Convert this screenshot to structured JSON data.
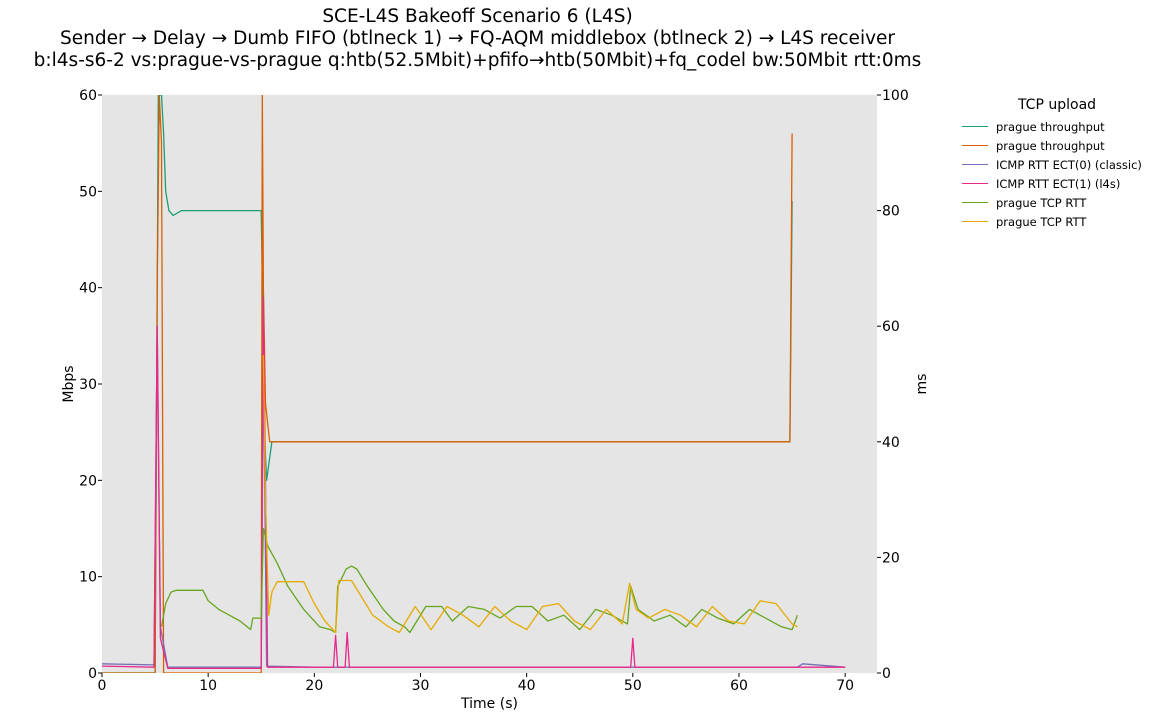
{
  "title": {
    "line1": "SCE-L4S Bakeoff Scenario 6 (L4S)",
    "line2": "Sender → Delay → Dumb FIFO (btlneck 1) → FQ-AQM middlebox (btlneck 2) → L4S receiver",
    "line3": "b:l4s-s6-2 vs:prague-vs-prague q:htb(52.5Mbit)+pfifo→htb(50Mbit)+fq_codel bw:50Mbit rtt:0ms"
  },
  "chart_data": {
    "type": "line",
    "background": "#e5e5e5",
    "grid": false,
    "legend_placement": "outside-right",
    "xlabel": "Time (s)",
    "ylabel_left": "Mbps",
    "ylabel_right": "ms",
    "xlim": [
      0,
      73
    ],
    "ylim_left": [
      0,
      60
    ],
    "ylim_right": [
      0,
      100
    ],
    "xticks": [
      0,
      10,
      20,
      30,
      40,
      50,
      60,
      70
    ],
    "yticks_left": [
      0,
      10,
      20,
      30,
      40,
      50,
      60
    ],
    "yticks_right": [
      0,
      20,
      40,
      60,
      80,
      100
    ],
    "legend_title": "TCP upload",
    "series": [
      {
        "name": "prague throughput",
        "axis": "left",
        "color": "#1b9e77",
        "x": [
          0,
          5,
          5.3,
          5.6,
          5.8,
          6.0,
          6.3,
          6.7,
          7.5,
          10,
          12.5,
          14.8,
          15.0,
          15.15,
          15.3,
          15.5,
          16,
          17,
          20,
          30,
          40,
          50,
          60,
          64.8,
          65.0
        ],
        "y": [
          0,
          0,
          60,
          60,
          56,
          50,
          48,
          47.5,
          48,
          48,
          48,
          48,
          48,
          38,
          25,
          20,
          24,
          24,
          24,
          24,
          24,
          24,
          24,
          24,
          49
        ]
      },
      {
        "name": "prague throughput",
        "axis": "left",
        "color": "#d95f02",
        "x": [
          0,
          5,
          5.2,
          5.4,
          5.6,
          5.8,
          15.0,
          15.1,
          15.2,
          15.4,
          15.8,
          16.5,
          20,
          30,
          40,
          50,
          60,
          64.8,
          65.0
        ],
        "y": [
          0,
          0,
          40,
          60,
          55,
          0,
          0,
          60,
          40,
          28,
          24,
          24,
          24,
          24,
          24,
          24,
          24,
          24,
          56
        ]
      },
      {
        "name": "ICMP RTT ECT(0) (classic)",
        "axis": "right",
        "color": "#7570b3",
        "x": [
          0,
          4.9,
          5.2,
          5.5,
          6.2,
          15.0,
          15.2,
          15.5,
          20,
          30,
          40,
          50,
          60,
          65.5,
          66,
          70
        ],
        "y": [
          1.6,
          1.4,
          60,
          8,
          1.0,
          1.0,
          55,
          1.2,
          1.0,
          1.0,
          1.0,
          1.0,
          1.0,
          1.0,
          1.6,
          1.0
        ]
      },
      {
        "name": "ICMP RTT ECT(1) (l4s)",
        "axis": "right",
        "color": "#e7298a",
        "x": [
          0,
          4.9,
          5.2,
          5.5,
          6.2,
          15.0,
          15.2,
          15.6,
          21.8,
          22.0,
          22.2,
          22.9,
          23.1,
          23.3,
          49.8,
          50.0,
          50.2,
          70
        ],
        "y": [
          1.2,
          1.0,
          60,
          6,
          0.8,
          0.8,
          65,
          1.0,
          1.0,
          6.5,
          1.0,
          1.0,
          7,
          1.0,
          1.0,
          6,
          1.0,
          1.0
        ]
      },
      {
        "name": "prague TCP RTT",
        "axis": "right",
        "color": "#66a61e",
        "x": [
          5.6,
          6.0,
          6.5,
          7.0,
          9.5,
          10.0,
          11.0,
          12.0,
          13.0,
          14.0,
          14.2,
          15.0,
          15.2,
          15.6,
          16.5,
          17.5,
          19.0,
          20.5,
          21.5,
          22.0,
          22.2,
          23.0,
          23.5,
          24.0,
          25.0,
          26.5,
          27.5,
          28.5,
          29.0,
          30.5,
          32.0,
          33.0,
          34.5,
          36.0,
          37.5,
          39.0,
          40.5,
          42.0,
          43.5,
          45.0,
          46.5,
          48.0,
          49.5,
          49.8,
          50.5,
          52.0,
          53.5,
          55.0,
          56.5,
          58.0,
          59.5,
          61.0,
          62.5,
          64.0,
          65.0,
          65.5
        ],
        "y": [
          8,
          12,
          14,
          14.3,
          14.3,
          12.5,
          11,
          10,
          9,
          7.5,
          9.5,
          9.5,
          25,
          22,
          19,
          15,
          11,
          8,
          7.5,
          7,
          15,
          18,
          18.5,
          18,
          15,
          11,
          9,
          8,
          7,
          11.5,
          11.5,
          9,
          11.5,
          11,
          9.5,
          11.5,
          11.5,
          9,
          10,
          7.5,
          11,
          10,
          8.5,
          15,
          11,
          9,
          10,
          8,
          11,
          9.5,
          8.5,
          11,
          9.5,
          8,
          7.5,
          10
        ]
      },
      {
        "name": "prague TCP RTT",
        "axis": "right",
        "color": "#e6ab02",
        "x": [
          15.2,
          15.4,
          15.7,
          16.0,
          16.5,
          17.5,
          19.0,
          20.0,
          21.0,
          22.0,
          22.3,
          23.5,
          24.5,
          25.5,
          27.0,
          28.0,
          29.5,
          31.0,
          32.5,
          34.0,
          35.5,
          37.0,
          38.5,
          40.0,
          41.5,
          43.0,
          44.5,
          46.0,
          47.5,
          49.0,
          49.7,
          50.3,
          51.5,
          53.0,
          54.5,
          56.0,
          57.5,
          59.0,
          60.5,
          62.0,
          63.5,
          65.0,
          65.5
        ],
        "y": [
          55,
          30,
          10,
          14,
          15.8,
          15.8,
          15.8,
          12,
          9,
          7,
          16,
          16,
          13,
          10,
          8,
          7,
          11.5,
          7.5,
          11.5,
          10,
          8,
          11.5,
          9,
          7.5,
          11.5,
          12,
          9,
          7.5,
          11,
          8.5,
          15.5,
          11,
          9.5,
          11,
          10,
          8,
          11.5,
          9,
          8.5,
          12.5,
          12,
          8.5,
          8
        ]
      }
    ]
  }
}
